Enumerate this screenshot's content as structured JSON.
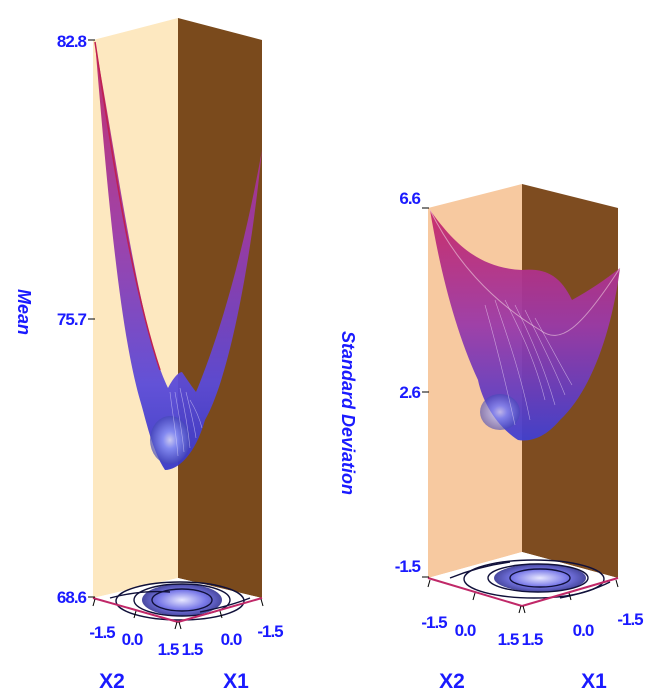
{
  "chart_data": [
    {
      "type": "surface3d",
      "zlabel": "Mean",
      "xlabel": "X1",
      "ylabel": "X2",
      "zlim": [
        68.6,
        82.8
      ],
      "z_ticks": [
        "82.8",
        "75.7",
        "68.6"
      ],
      "x1_ticks": [
        "1.5",
        "0.0",
        "-1.5"
      ],
      "x2_ticks": [
        "-1.5",
        "0.0",
        "1.5"
      ],
      "x_range": [
        -1.5,
        1.5
      ],
      "y_range": [
        -1.5,
        1.5
      ],
      "surface_extremes": {
        "max": 82.8,
        "min": 68.6
      },
      "contour_projection": true
    },
    {
      "type": "surface3d",
      "zlabel": "Standard Deviation",
      "xlabel": "X1",
      "ylabel": "X2",
      "zlim": [
        -1.5,
        6.6
      ],
      "z_ticks": [
        "6.6",
        "2.6",
        "-1.5"
      ],
      "x1_ticks": [
        "1.5",
        "0.0",
        "-1.5"
      ],
      "x2_ticks": [
        "-1.5",
        "0.0",
        "1.5"
      ],
      "x_range": [
        -1.5,
        1.5
      ],
      "y_range": [
        -1.5,
        1.5
      ],
      "surface_extremes": {
        "max": 6.6
      },
      "contour_projection": true
    }
  ],
  "colors": {
    "left_wall": "#fde8c0",
    "right_wall_panel1": "#7a4a1c",
    "left_wall_panel2": "#f7c9a0",
    "right_wall_panel2": "#7e4c20",
    "floor": "#ffffff",
    "surface_high": "#b0307a",
    "surface_low": "#4a4ad8",
    "label": "#1a1aff"
  }
}
